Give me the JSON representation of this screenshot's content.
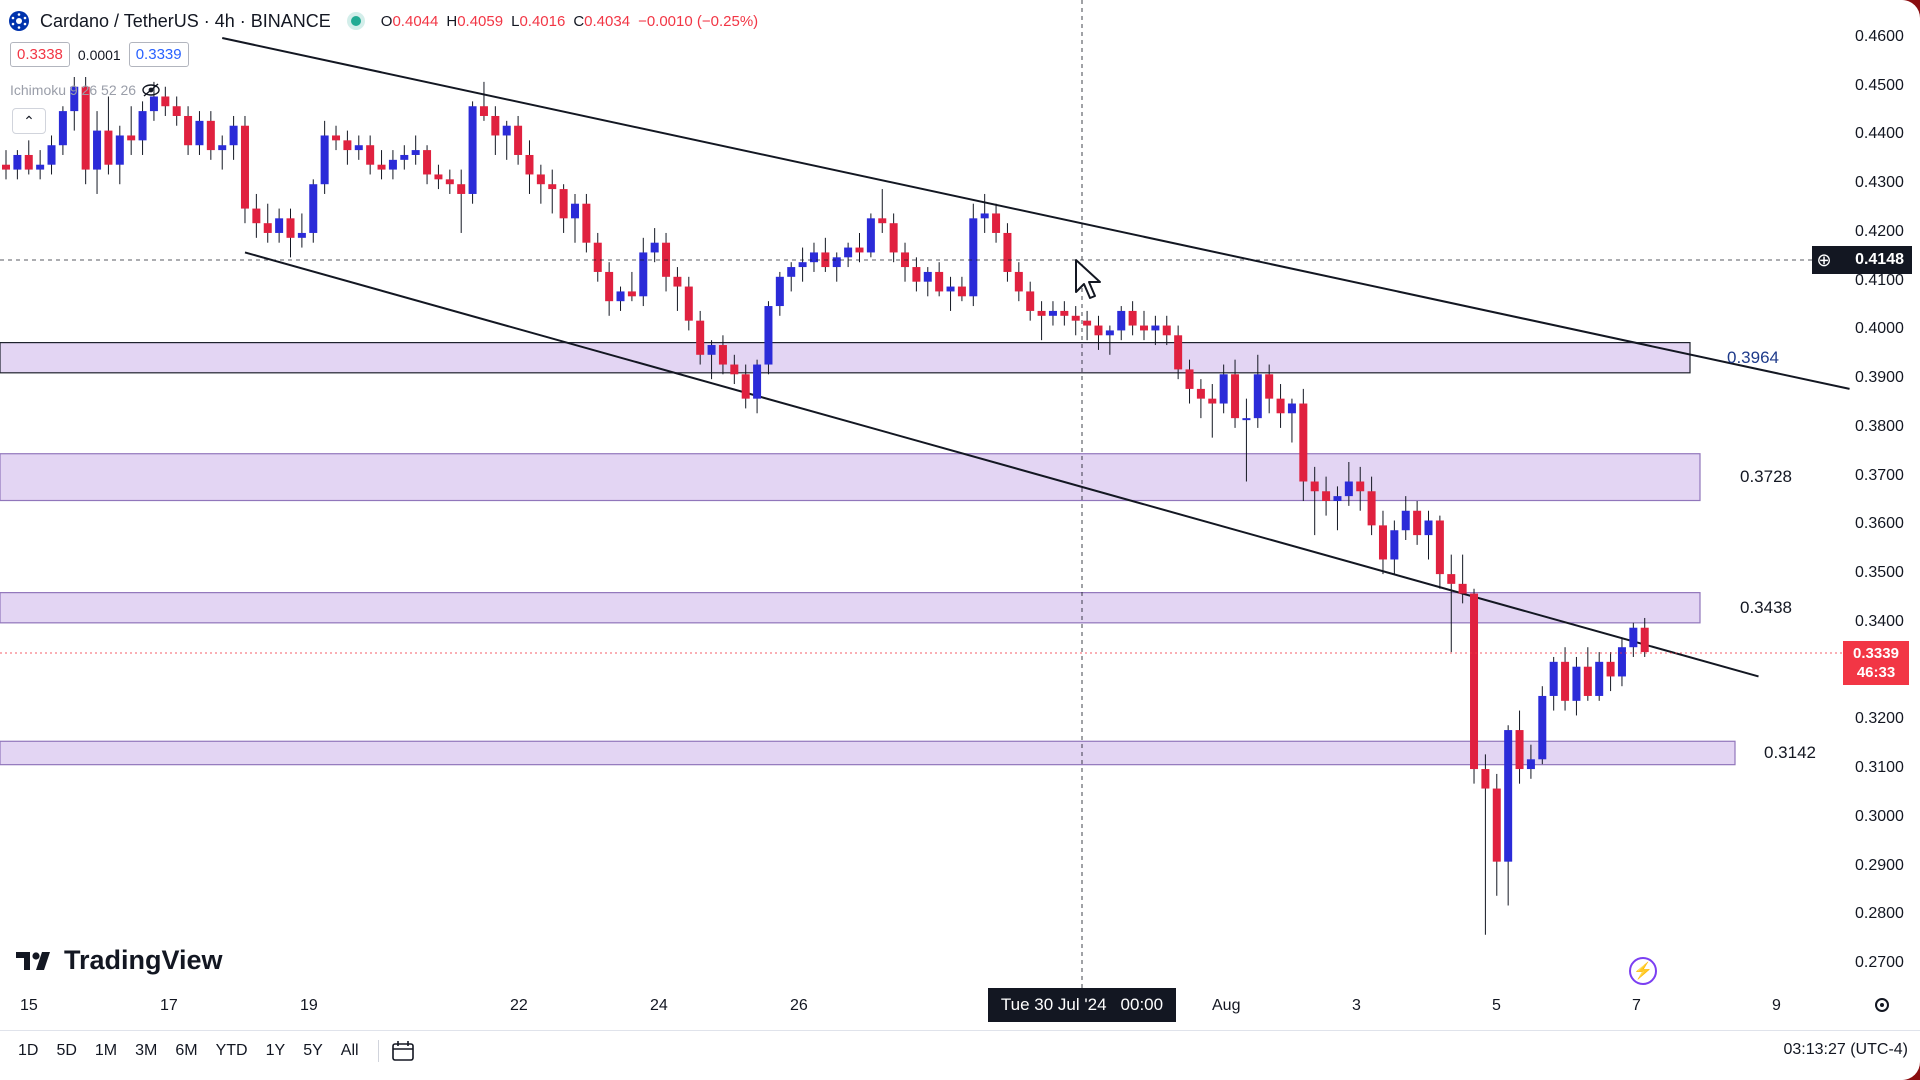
{
  "header": {
    "symbol": "Cardano / TetherUS · 4h · BINANCE",
    "ohlc": {
      "open_label": "O",
      "open": "0.4044",
      "high_label": "H",
      "high": "0.4059",
      "low_label": "L",
      "low": "0.4016",
      "close_label": "C",
      "close": "0.4034",
      "change": "−0.0010 (−0.25%)"
    },
    "sell_price": "0.3338",
    "spread": "0.0001",
    "buy_price": "0.3339",
    "indicator": "Ichimoku 9 26 52 26",
    "collapse_glyph": "⌃"
  },
  "logo": {
    "text": "TradingView",
    "icon": "tradingview-logo-icon"
  },
  "price_axis": {
    "labels": [
      "0.4600",
      "0.4500",
      "0.4400",
      "0.4300",
      "0.4200",
      "0.4100",
      "0.4000",
      "0.3900",
      "0.3800",
      "0.3700",
      "0.3600",
      "0.3500",
      "0.3400",
      "0.3300",
      "0.3200",
      "0.3100",
      "0.3000",
      "0.2900",
      "0.2800",
      "0.2700"
    ],
    "crosshair_price": "0.4148",
    "current_price": "0.3339",
    "countdown": "46:33"
  },
  "time_axis": {
    "labels": [
      "15",
      "17",
      "19",
      "22",
      "24",
      "26",
      "Aug",
      "3",
      "5",
      "7",
      "9"
    ],
    "crosshair_date": "Tue 30 Jul '24",
    "crosshair_time": "00:00"
  },
  "zones": [
    {
      "label": "0.3964",
      "top": 0.3975,
      "bottom": 0.3913
    },
    {
      "label": "0.3728",
      "top": 0.3747,
      "bottom": 0.3651
    },
    {
      "label": "0.3438",
      "top": 0.3462,
      "bottom": 0.34
    },
    {
      "label": "0.3142",
      "top": 0.3157,
      "bottom": 0.3109
    }
  ],
  "bottom_bar": {
    "ranges": [
      "1D",
      "5D",
      "1M",
      "3M",
      "6M",
      "YTD",
      "1Y",
      "5Y",
      "All"
    ],
    "clock": "03:13:27 (UTC-4)"
  },
  "colors": {
    "up": "#2b2bd8",
    "down": "#e0213f",
    "zone_fill": "#e2d3f3",
    "zone_border": "#8c6fb8",
    "crosshair": "#131722",
    "cur_price_bg": "#f23645"
  },
  "chart_data": {
    "type": "candlestick",
    "interval": "4h",
    "y_range": [
      0.27,
      0.46
    ],
    "candles": [
      [
        0.434,
        0.437,
        0.431,
        0.433
      ],
      [
        0.433,
        0.437,
        0.431,
        0.436
      ],
      [
        0.436,
        0.439,
        0.432,
        0.433
      ],
      [
        0.433,
        0.437,
        0.431,
        0.434
      ],
      [
        0.434,
        0.44,
        0.432,
        0.438
      ],
      [
        0.438,
        0.446,
        0.436,
        0.445
      ],
      [
        0.445,
        0.452,
        0.441,
        0.45
      ],
      [
        0.45,
        0.452,
        0.43,
        0.433
      ],
      [
        0.433,
        0.445,
        0.428,
        0.441
      ],
      [
        0.441,
        0.448,
        0.432,
        0.434
      ],
      [
        0.434,
        0.442,
        0.43,
        0.44
      ],
      [
        0.44,
        0.446,
        0.436,
        0.439
      ],
      [
        0.439,
        0.447,
        0.436,
        0.445
      ],
      [
        0.445,
        0.451,
        0.443,
        0.448
      ],
      [
        0.448,
        0.45,
        0.444,
        0.446
      ],
      [
        0.446,
        0.448,
        0.442,
        0.444
      ],
      [
        0.444,
        0.446,
        0.436,
        0.438
      ],
      [
        0.438,
        0.445,
        0.436,
        0.443
      ],
      [
        0.443,
        0.445,
        0.435,
        0.437
      ],
      [
        0.437,
        0.44,
        0.433,
        0.438
      ],
      [
        0.438,
        0.444,
        0.435,
        0.442
      ],
      [
        0.442,
        0.444,
        0.422,
        0.425
      ],
      [
        0.425,
        0.428,
        0.419,
        0.422
      ],
      [
        0.422,
        0.426,
        0.418,
        0.42
      ],
      [
        0.42,
        0.425,
        0.418,
        0.423
      ],
      [
        0.423,
        0.425,
        0.415,
        0.419
      ],
      [
        0.419,
        0.424,
        0.417,
        0.42
      ],
      [
        0.42,
        0.431,
        0.418,
        0.43
      ],
      [
        0.43,
        0.443,
        0.428,
        0.44
      ],
      [
        0.44,
        0.442,
        0.437,
        0.439
      ],
      [
        0.439,
        0.441,
        0.434,
        0.437
      ],
      [
        0.437,
        0.44,
        0.435,
        0.438
      ],
      [
        0.438,
        0.44,
        0.432,
        0.434
      ],
      [
        0.434,
        0.437,
        0.431,
        0.433
      ],
      [
        0.433,
        0.437,
        0.431,
        0.435
      ],
      [
        0.435,
        0.438,
        0.433,
        0.436
      ],
      [
        0.436,
        0.44,
        0.434,
        0.437
      ],
      [
        0.437,
        0.438,
        0.43,
        0.432
      ],
      [
        0.432,
        0.434,
        0.429,
        0.431
      ],
      [
        0.431,
        0.433,
        0.428,
        0.43
      ],
      [
        0.43,
        0.433,
        0.42,
        0.428
      ],
      [
        0.428,
        0.447,
        0.426,
        0.446
      ],
      [
        0.446,
        0.451,
        0.443,
        0.444
      ],
      [
        0.444,
        0.446,
        0.436,
        0.44
      ],
      [
        0.44,
        0.443,
        0.435,
        0.442
      ],
      [
        0.442,
        0.444,
        0.434,
        0.436
      ],
      [
        0.436,
        0.439,
        0.428,
        0.432
      ],
      [
        0.432,
        0.434,
        0.426,
        0.43
      ],
      [
        0.43,
        0.433,
        0.424,
        0.429
      ],
      [
        0.429,
        0.43,
        0.42,
        0.423
      ],
      [
        0.423,
        0.428,
        0.418,
        0.426
      ],
      [
        0.426,
        0.428,
        0.416,
        0.418
      ],
      [
        0.418,
        0.42,
        0.41,
        0.412
      ],
      [
        0.412,
        0.414,
        0.403,
        0.406
      ],
      [
        0.406,
        0.409,
        0.404,
        0.408
      ],
      [
        0.408,
        0.412,
        0.406,
        0.407
      ],
      [
        0.407,
        0.419,
        0.405,
        0.416
      ],
      [
        0.416,
        0.421,
        0.414,
        0.418
      ],
      [
        0.418,
        0.42,
        0.408,
        0.411
      ],
      [
        0.411,
        0.413,
        0.404,
        0.409
      ],
      [
        0.409,
        0.411,
        0.4,
        0.402
      ],
      [
        0.402,
        0.404,
        0.393,
        0.395
      ],
      [
        0.395,
        0.398,
        0.39,
        0.397
      ],
      [
        0.397,
        0.399,
        0.391,
        0.393
      ],
      [
        0.393,
        0.395,
        0.389,
        0.391
      ],
      [
        0.391,
        0.393,
        0.384,
        0.386
      ],
      [
        0.386,
        0.394,
        0.383,
        0.393
      ],
      [
        0.393,
        0.406,
        0.391,
        0.405
      ],
      [
        0.405,
        0.412,
        0.403,
        0.411
      ],
      [
        0.411,
        0.414,
        0.408,
        0.413
      ],
      [
        0.413,
        0.417,
        0.41,
        0.414
      ],
      [
        0.414,
        0.418,
        0.412,
        0.416
      ],
      [
        0.416,
        0.419,
        0.412,
        0.413
      ],
      [
        0.413,
        0.416,
        0.41,
        0.415
      ],
      [
        0.415,
        0.418,
        0.413,
        0.417
      ],
      [
        0.417,
        0.42,
        0.414,
        0.416
      ],
      [
        0.416,
        0.424,
        0.415,
        0.423
      ],
      [
        0.423,
        0.429,
        0.42,
        0.422
      ],
      [
        0.422,
        0.424,
        0.414,
        0.416
      ],
      [
        0.416,
        0.418,
        0.41,
        0.413
      ],
      [
        0.413,
        0.415,
        0.408,
        0.41
      ],
      [
        0.41,
        0.413,
        0.407,
        0.412
      ],
      [
        0.412,
        0.414,
        0.407,
        0.408
      ],
      [
        0.408,
        0.411,
        0.404,
        0.409
      ],
      [
        0.409,
        0.411,
        0.406,
        0.407
      ],
      [
        0.407,
        0.426,
        0.405,
        0.423
      ],
      [
        0.423,
        0.428,
        0.42,
        0.424
      ],
      [
        0.424,
        0.426,
        0.418,
        0.42
      ],
      [
        0.42,
        0.422,
        0.41,
        0.412
      ],
      [
        0.412,
        0.414,
        0.406,
        0.408
      ],
      [
        0.408,
        0.41,
        0.402,
        0.404
      ],
      [
        0.404,
        0.406,
        0.398,
        0.403
      ],
      [
        0.403,
        0.406,
        0.401,
        0.404
      ],
      [
        0.404,
        0.406,
        0.401,
        0.403
      ],
      [
        0.403,
        0.405,
        0.399,
        0.402
      ],
      [
        0.402,
        0.404,
        0.398,
        0.401
      ],
      [
        0.401,
        0.403,
        0.396,
        0.399
      ],
      [
        0.399,
        0.401,
        0.395,
        0.4
      ],
      [
        0.4,
        0.405,
        0.398,
        0.404
      ],
      [
        0.404,
        0.406,
        0.399,
        0.401
      ],
      [
        0.401,
        0.404,
        0.398,
        0.4
      ],
      [
        0.4,
        0.403,
        0.397,
        0.401
      ],
      [
        0.401,
        0.403,
        0.397,
        0.399
      ],
      [
        0.399,
        0.401,
        0.39,
        0.392
      ],
      [
        0.392,
        0.394,
        0.385,
        0.388
      ],
      [
        0.388,
        0.39,
        0.382,
        0.386
      ],
      [
        0.386,
        0.389,
        0.378,
        0.385
      ],
      [
        0.385,
        0.393,
        0.383,
        0.391
      ],
      [
        0.391,
        0.394,
        0.38,
        0.382
      ],
      [
        0.382,
        0.386,
        0.369,
        0.382
      ],
      [
        0.382,
        0.395,
        0.38,
        0.391
      ],
      [
        0.391,
        0.393,
        0.383,
        0.386
      ],
      [
        0.386,
        0.389,
        0.38,
        0.383
      ],
      [
        0.383,
        0.386,
        0.377,
        0.385
      ],
      [
        0.385,
        0.388,
        0.365,
        0.369
      ],
      [
        0.369,
        0.372,
        0.358,
        0.367
      ],
      [
        0.367,
        0.37,
        0.362,
        0.365
      ],
      [
        0.365,
        0.368,
        0.359,
        0.366
      ],
      [
        0.366,
        0.373,
        0.364,
        0.369
      ],
      [
        0.369,
        0.372,
        0.363,
        0.367
      ],
      [
        0.367,
        0.37,
        0.358,
        0.36
      ],
      [
        0.36,
        0.363,
        0.35,
        0.353
      ],
      [
        0.353,
        0.361,
        0.35,
        0.359
      ],
      [
        0.359,
        0.366,
        0.357,
        0.363
      ],
      [
        0.363,
        0.365,
        0.356,
        0.358
      ],
      [
        0.358,
        0.363,
        0.353,
        0.361
      ],
      [
        0.361,
        0.362,
        0.347,
        0.35
      ],
      [
        0.35,
        0.354,
        0.334,
        0.348
      ],
      [
        0.348,
        0.354,
        0.344,
        0.346
      ],
      [
        0.346,
        0.347,
        0.307,
        0.31
      ],
      [
        0.31,
        0.313,
        0.276,
        0.306
      ],
      [
        0.306,
        0.309,
        0.284,
        0.291
      ],
      [
        0.291,
        0.319,
        0.282,
        0.318
      ],
      [
        0.318,
        0.322,
        0.307,
        0.31
      ],
      [
        0.31,
        0.315,
        0.308,
        0.312
      ],
      [
        0.312,
        0.327,
        0.311,
        0.325
      ],
      [
        0.325,
        0.333,
        0.322,
        0.332
      ],
      [
        0.332,
        0.335,
        0.322,
        0.324
      ],
      [
        0.324,
        0.333,
        0.321,
        0.331
      ],
      [
        0.331,
        0.335,
        0.324,
        0.325
      ],
      [
        0.325,
        0.334,
        0.324,
        0.332
      ],
      [
        0.332,
        0.334,
        0.326,
        0.329
      ],
      [
        0.329,
        0.337,
        0.327,
        0.335
      ],
      [
        0.335,
        0.34,
        0.333,
        0.339
      ],
      [
        0.339,
        0.341,
        0.333,
        0.334
      ]
    ],
    "trendlines": [
      {
        "name": "upper",
        "from": [
          19,
          0.46
        ],
        "to": [
          162,
          0.388
        ]
      },
      {
        "name": "lower",
        "from": [
          21,
          0.416
        ],
        "to": [
          154,
          0.329
        ]
      }
    ]
  }
}
